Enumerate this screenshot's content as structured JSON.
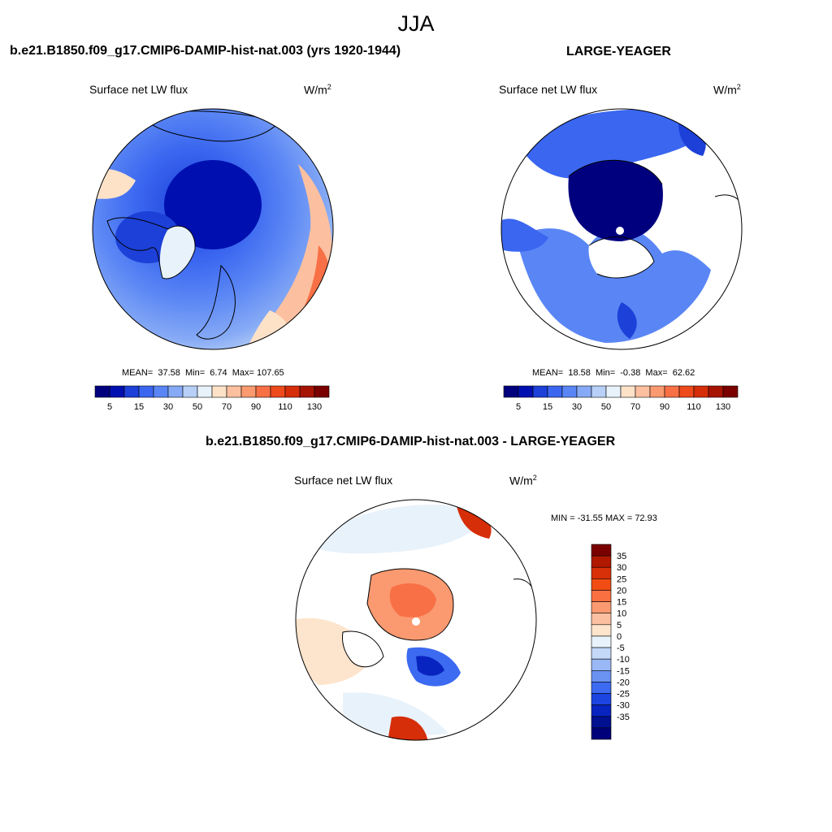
{
  "page": {
    "title": "JJA"
  },
  "palette_main": [
    "#00007f",
    "#0010b0",
    "#1c40d8",
    "#3a66f0",
    "#5a86f5",
    "#86aaf5",
    "#b8d0f8",
    "#e8f2fb",
    "#fde2c8",
    "#fcc0a0",
    "#fb9a70",
    "#f87046",
    "#ee4a1c",
    "#d62e08",
    "#a61404",
    "#7a0000"
  ],
  "palette_diff": [
    "#7a0000",
    "#b01800",
    "#d83008",
    "#f04c14",
    "#fb7040",
    "#fb9a70",
    "#fcc0a0",
    "#fde4cc",
    "#e8f2fb",
    "#c4d8f8",
    "#9ab8f5",
    "#6a92f2",
    "#3c6af0",
    "#1c44e0",
    "#0824c0",
    "#001090",
    "#00007a"
  ],
  "colors": {
    "coast": "#000000",
    "land_nodata": "#ffffff"
  },
  "chart_data": [
    {
      "type": "heatmap",
      "title": "b.e21.B1850.f09_g17.CMIP6-DAMIP-hist-nat.003 (yrs 1920-1944)",
      "variable": "Surface net LW flux",
      "units_base": "W/m",
      "units_exp": "2",
      "projection": "north polar stereographic",
      "stats": {
        "mean": "37.58",
        "min": "6.74",
        "max": "107.65"
      },
      "colorbar": {
        "orientation": "horizontal",
        "ticks": [
          "5",
          "15",
          "30",
          "50",
          "70",
          "90",
          "110",
          "130"
        ]
      }
    },
    {
      "type": "heatmap",
      "title": "LARGE-YEAGER",
      "variable": "Surface net LW flux",
      "units_base": "W/m",
      "units_exp": "2",
      "projection": "north polar stereographic",
      "stats": {
        "mean": "18.58",
        "min": "-0.38",
        "max": "62.62"
      },
      "colorbar": {
        "orientation": "horizontal",
        "ticks": [
          "5",
          "15",
          "30",
          "50",
          "70",
          "90",
          "110",
          "130"
        ]
      }
    },
    {
      "type": "heatmap",
      "title": "b.e21.B1850.f09_g17.CMIP6-DAMIP-hist-nat.003 - LARGE-YEAGER",
      "variable": "Surface net LW flux",
      "units_base": "W/m",
      "units_exp": "2",
      "projection": "north polar stereographic",
      "stats": {
        "min_max_text": "MIN = -31.55 MAX =  72.93"
      },
      "colorbar": {
        "orientation": "vertical",
        "ticks": [
          "35",
          "30",
          "25",
          "20",
          "15",
          "10",
          "5",
          "0",
          "-5",
          "-10",
          "-15",
          "-20",
          "-25",
          "-30",
          "-35"
        ]
      }
    }
  ]
}
